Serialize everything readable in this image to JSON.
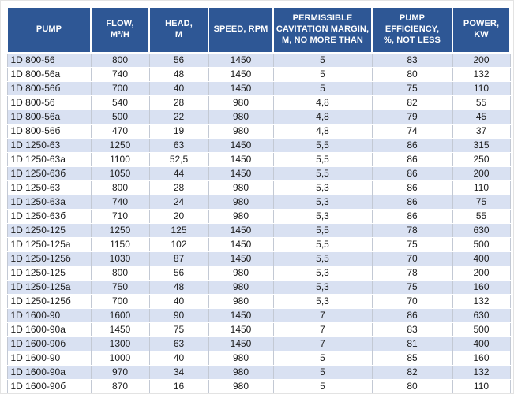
{
  "table": {
    "name": "pump-specifications",
    "columns": [
      {
        "id": "pump",
        "label": "PUMP"
      },
      {
        "id": "flow",
        "label": "FLOW,\nM³/H"
      },
      {
        "id": "head",
        "label": "HEAD,\nM"
      },
      {
        "id": "speed",
        "label": "SPEED, RPM"
      },
      {
        "id": "cavitation",
        "label": "PERMISSIBLE\nCAVITATION MARGIN,\nM, NO MORE THAN"
      },
      {
        "id": "efficiency",
        "label": "PUMP\nEFFICIENCY,\n%, NOT LESS"
      },
      {
        "id": "power",
        "label": "POWER,\nKW"
      }
    ],
    "rows": [
      [
        "1D 800-56",
        "800",
        "56",
        "1450",
        "5",
        "83",
        "200"
      ],
      [
        "1D 800-56a",
        "740",
        "48",
        "1450",
        "5",
        "80",
        "132"
      ],
      [
        "1D 800-56б",
        "700",
        "40",
        "1450",
        "5",
        "75",
        "110"
      ],
      [
        "1D 800-56",
        "540",
        "28",
        "980",
        "4,8",
        "82",
        "55"
      ],
      [
        "1D 800-56a",
        "500",
        "22",
        "980",
        "4,8",
        "79",
        "45"
      ],
      [
        "1D 800-56б",
        "470",
        "19",
        "980",
        "4,8",
        "74",
        "37"
      ],
      [
        "1D 1250-63",
        "1250",
        "63",
        "1450",
        "5,5",
        "86",
        "315"
      ],
      [
        "1D 1250-63a",
        "1100",
        "52,5",
        "1450",
        "5,5",
        "86",
        "250"
      ],
      [
        "1D 1250-63б",
        "1050",
        "44",
        "1450",
        "5,5",
        "86",
        "200"
      ],
      [
        "1D 1250-63",
        "800",
        "28",
        "980",
        "5,3",
        "86",
        "110"
      ],
      [
        "1D 1250-63a",
        "740",
        "24",
        "980",
        "5,3",
        "86",
        "75"
      ],
      [
        "1D 1250-63б",
        "710",
        "20",
        "980",
        "5,3",
        "86",
        "55"
      ],
      [
        "1D 1250-125",
        "1250",
        "125",
        "1450",
        "5,5",
        "78",
        "630"
      ],
      [
        "1D 1250-125a",
        "1150",
        "102",
        "1450",
        "5,5",
        "75",
        "500"
      ],
      [
        "1D 1250-125б",
        "1030",
        "87",
        "1450",
        "5,5",
        "70",
        "400"
      ],
      [
        "1D 1250-125",
        "800",
        "56",
        "980",
        "5,3",
        "78",
        "200"
      ],
      [
        "1D 1250-125a",
        "750",
        "48",
        "980",
        "5,3",
        "75",
        "160"
      ],
      [
        "1D 1250-125б",
        "700",
        "40",
        "980",
        "5,3",
        "70",
        "132"
      ],
      [
        "1D 1600-90",
        "1600",
        "90",
        "1450",
        "7",
        "86",
        "630"
      ],
      [
        "1D 1600-90a",
        "1450",
        "75",
        "1450",
        "7",
        "83",
        "500"
      ],
      [
        "1D 1600-90б",
        "1300",
        "63",
        "1450",
        "7",
        "81",
        "400"
      ],
      [
        "1D 1600-90",
        "1000",
        "40",
        "980",
        "5",
        "85",
        "160"
      ],
      [
        "1D 1600-90a",
        "970",
        "34",
        "980",
        "5",
        "82",
        "132"
      ],
      [
        "1D 1600-90б",
        "870",
        "16",
        "980",
        "5",
        "80",
        "110"
      ]
    ],
    "colors": {
      "header_background": "#2e5795",
      "header_text": "#ffffff",
      "stripe_row_background": "#d9e1f2",
      "plain_row_background": "#ffffff",
      "cell_text": "#1c1c1c",
      "grid_line": "#c3c9d4"
    }
  }
}
